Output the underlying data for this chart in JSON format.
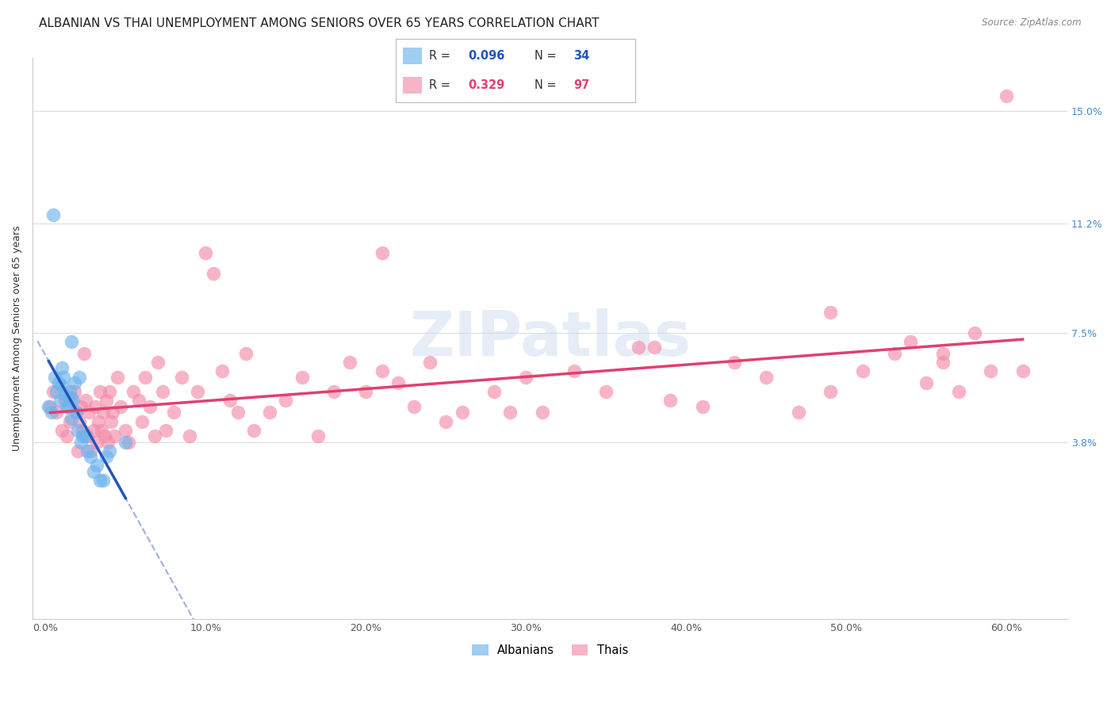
{
  "title": "ALBANIAN VS THAI UNEMPLOYMENT AMONG SENIORS OVER 65 YEARS CORRELATION CHART",
  "source": "Source: ZipAtlas.com",
  "ylabel": "Unemployment Among Seniors over 65 years",
  "xlabel_ticks": [
    "0.0%",
    "10.0%",
    "20.0%",
    "30.0%",
    "40.0%",
    "50.0%",
    "60.0%"
  ],
  "xlabel_vals": [
    0.0,
    0.1,
    0.2,
    0.3,
    0.4,
    0.5,
    0.6
  ],
  "ylabel_ticks_right": [
    "3.8%",
    "7.5%",
    "11.2%",
    "15.0%"
  ],
  "ylabel_vals_right": [
    0.038,
    0.075,
    0.112,
    0.15
  ],
  "xlim": [
    -0.008,
    0.638
  ],
  "ylim": [
    -0.022,
    0.168
  ],
  "albanians_color": "#6eb3ec",
  "thais_color": "#f48caa",
  "alb_line_color": "#2255bb",
  "alb_dash_color": "#99aadd",
  "thai_line_color": "#e04070",
  "title_fontsize": 11,
  "source_fontsize": 8.5,
  "axis_label_fontsize": 9,
  "tick_fontsize": 9,
  "legend_fontsize": 10.5,
  "background_color": "#ffffff",
  "grid_color": "#dddddd",
  "watermark": "ZIPatlas",
  "albanians_x": [
    0.002,
    0.004,
    0.005,
    0.006,
    0.007,
    0.008,
    0.009,
    0.01,
    0.01,
    0.011,
    0.012,
    0.013,
    0.014,
    0.015,
    0.015,
    0.016,
    0.016,
    0.017,
    0.018,
    0.019,
    0.02,
    0.021,
    0.022,
    0.023,
    0.025,
    0.026,
    0.028,
    0.03,
    0.032,
    0.034,
    0.036,
    0.038,
    0.04,
    0.05
  ],
  "albanians_y": [
    0.05,
    0.048,
    0.115,
    0.06,
    0.055,
    0.058,
    0.052,
    0.063,
    0.057,
    0.06,
    0.054,
    0.05,
    0.05,
    0.053,
    0.055,
    0.046,
    0.072,
    0.052,
    0.058,
    0.048,
    0.042,
    0.06,
    0.038,
    0.04,
    0.04,
    0.035,
    0.033,
    0.028,
    0.03,
    0.025,
    0.025,
    0.033,
    0.035,
    0.038
  ],
  "thais_x": [
    0.003,
    0.005,
    0.007,
    0.01,
    0.012,
    0.013,
    0.015,
    0.016,
    0.018,
    0.019,
    0.02,
    0.021,
    0.022,
    0.023,
    0.024,
    0.025,
    0.026,
    0.027,
    0.028,
    0.03,
    0.031,
    0.032,
    0.033,
    0.034,
    0.035,
    0.036,
    0.037,
    0.038,
    0.039,
    0.04,
    0.041,
    0.042,
    0.043,
    0.045,
    0.047,
    0.05,
    0.052,
    0.055,
    0.058,
    0.06,
    0.062,
    0.065,
    0.068,
    0.07,
    0.073,
    0.075,
    0.08,
    0.085,
    0.09,
    0.095,
    0.1,
    0.105,
    0.11,
    0.115,
    0.12,
    0.125,
    0.13,
    0.14,
    0.15,
    0.16,
    0.17,
    0.18,
    0.19,
    0.2,
    0.21,
    0.22,
    0.23,
    0.24,
    0.25,
    0.26,
    0.28,
    0.3,
    0.31,
    0.33,
    0.35,
    0.37,
    0.39,
    0.41,
    0.43,
    0.45,
    0.47,
    0.49,
    0.51,
    0.53,
    0.55,
    0.56,
    0.57,
    0.58,
    0.59,
    0.6,
    0.61,
    0.54,
    0.49,
    0.56,
    0.38,
    0.29,
    0.21
  ],
  "thais_y": [
    0.05,
    0.055,
    0.048,
    0.042,
    0.052,
    0.04,
    0.045,
    0.053,
    0.055,
    0.048,
    0.035,
    0.045,
    0.05,
    0.042,
    0.068,
    0.052,
    0.04,
    0.048,
    0.035,
    0.042,
    0.05,
    0.038,
    0.045,
    0.055,
    0.042,
    0.048,
    0.04,
    0.052,
    0.038,
    0.055,
    0.045,
    0.048,
    0.04,
    0.06,
    0.05,
    0.042,
    0.038,
    0.055,
    0.052,
    0.045,
    0.06,
    0.05,
    0.04,
    0.065,
    0.055,
    0.042,
    0.048,
    0.06,
    0.04,
    0.055,
    0.102,
    0.095,
    0.062,
    0.052,
    0.048,
    0.068,
    0.042,
    0.048,
    0.052,
    0.06,
    0.04,
    0.055,
    0.065,
    0.055,
    0.062,
    0.058,
    0.05,
    0.065,
    0.045,
    0.048,
    0.055,
    0.06,
    0.048,
    0.062,
    0.055,
    0.07,
    0.052,
    0.05,
    0.065,
    0.06,
    0.048,
    0.055,
    0.062,
    0.068,
    0.058,
    0.065,
    0.055,
    0.075,
    0.062,
    0.155,
    0.062,
    0.072,
    0.082,
    0.068,
    0.07,
    0.048,
    0.102
  ]
}
